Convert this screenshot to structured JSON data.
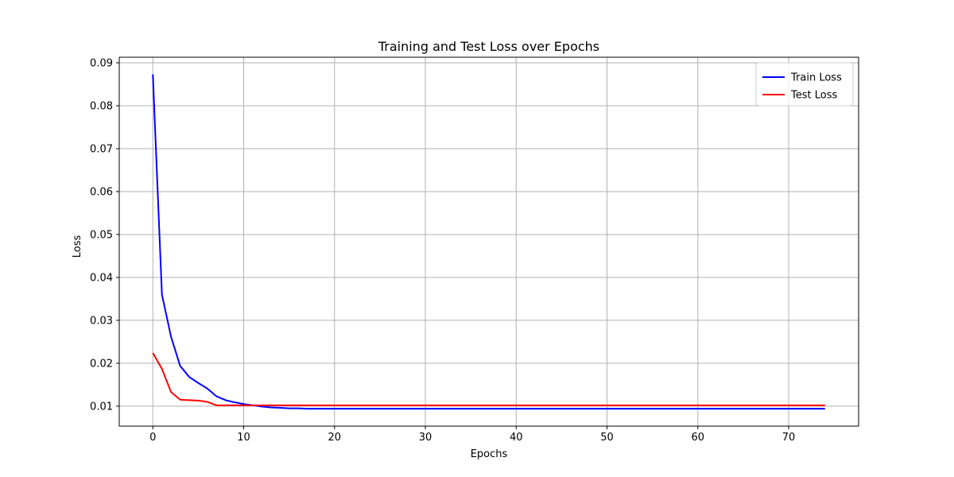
{
  "chart_data": {
    "type": "line",
    "title": "Training and Test Loss over Epochs",
    "xlabel": "Epochs",
    "ylabel": "Loss",
    "xlim": [
      -3.7,
      77.7
    ],
    "ylim": [
      0.00535,
      0.0913
    ],
    "xticks": [
      0,
      10,
      20,
      30,
      40,
      50,
      60,
      70
    ],
    "xtick_labels": [
      "0",
      "10",
      "20",
      "30",
      "40",
      "50",
      "60",
      "70"
    ],
    "yticks": [
      0.01,
      0.02,
      0.03,
      0.04,
      0.05,
      0.06,
      0.07,
      0.08,
      0.09
    ],
    "ytick_labels": [
      "0.01",
      "0.02",
      "0.03",
      "0.04",
      "0.05",
      "0.06",
      "0.07",
      "0.08",
      "0.09"
    ],
    "grid": true,
    "legend_position": "top-right",
    "x": [
      0,
      1,
      2,
      3,
      4,
      5,
      6,
      7,
      8,
      9,
      10,
      11,
      12,
      13,
      14,
      15,
      16,
      17,
      18,
      19,
      20,
      21,
      22,
      23,
      24,
      25,
      26,
      27,
      28,
      29,
      30,
      31,
      32,
      33,
      34,
      35,
      36,
      37,
      38,
      39,
      40,
      41,
      42,
      43,
      44,
      45,
      46,
      47,
      48,
      49,
      50,
      51,
      52,
      53,
      54,
      55,
      56,
      57,
      58,
      59,
      60,
      61,
      62,
      63,
      64,
      65,
      66,
      67,
      68,
      69,
      70,
      71,
      72,
      73,
      74
    ],
    "series": [
      {
        "name": "Train Loss",
        "color": "#0000ff",
        "values": [
          0.0873,
          0.036,
          0.0262,
          0.0194,
          0.0168,
          0.0154,
          0.0141,
          0.0123,
          0.0114,
          0.0109,
          0.0105,
          0.0102,
          0.0099,
          0.0097,
          0.0096,
          0.0095,
          0.0095,
          0.0094,
          0.0094,
          0.0094,
          0.0094,
          0.0094,
          0.0094,
          0.0094,
          0.0094,
          0.0094,
          0.0094,
          0.0094,
          0.0094,
          0.0094,
          0.0094,
          0.0094,
          0.0094,
          0.0094,
          0.0094,
          0.0094,
          0.0094,
          0.0094,
          0.0094,
          0.0094,
          0.0094,
          0.0094,
          0.0094,
          0.0094,
          0.0094,
          0.0094,
          0.0094,
          0.0094,
          0.0094,
          0.0094,
          0.0094,
          0.0094,
          0.0094,
          0.0094,
          0.0094,
          0.0094,
          0.0094,
          0.0094,
          0.0094,
          0.0094,
          0.0094,
          0.0094,
          0.0094,
          0.0094,
          0.0094,
          0.0094,
          0.0094,
          0.0094,
          0.0094,
          0.0094,
          0.0094,
          0.0094,
          0.0094,
          0.0094,
          0.0094
        ]
      },
      {
        "name": "Test Loss",
        "color": "#ff0000",
        "values": [
          0.0224,
          0.0187,
          0.0133,
          0.0115,
          0.0114,
          0.0113,
          0.011,
          0.0102,
          0.0102,
          0.0102,
          0.0102,
          0.0102,
          0.0102,
          0.0102,
          0.0102,
          0.0102,
          0.0102,
          0.0102,
          0.0102,
          0.0102,
          0.0102,
          0.0102,
          0.0102,
          0.0102,
          0.0102,
          0.0102,
          0.0102,
          0.0102,
          0.0102,
          0.0102,
          0.0102,
          0.0102,
          0.0102,
          0.0102,
          0.0102,
          0.0102,
          0.0102,
          0.0102,
          0.0102,
          0.0102,
          0.0102,
          0.0102,
          0.0102,
          0.0102,
          0.0102,
          0.0102,
          0.0102,
          0.0102,
          0.0102,
          0.0102,
          0.0102,
          0.0102,
          0.0102,
          0.0102,
          0.0102,
          0.0102,
          0.0102,
          0.0102,
          0.0102,
          0.0102,
          0.0102,
          0.0102,
          0.0102,
          0.0102,
          0.0102,
          0.0102,
          0.0102,
          0.0102,
          0.0102,
          0.0102,
          0.0102,
          0.0102,
          0.0102,
          0.0102,
          0.0102
        ]
      }
    ]
  }
}
